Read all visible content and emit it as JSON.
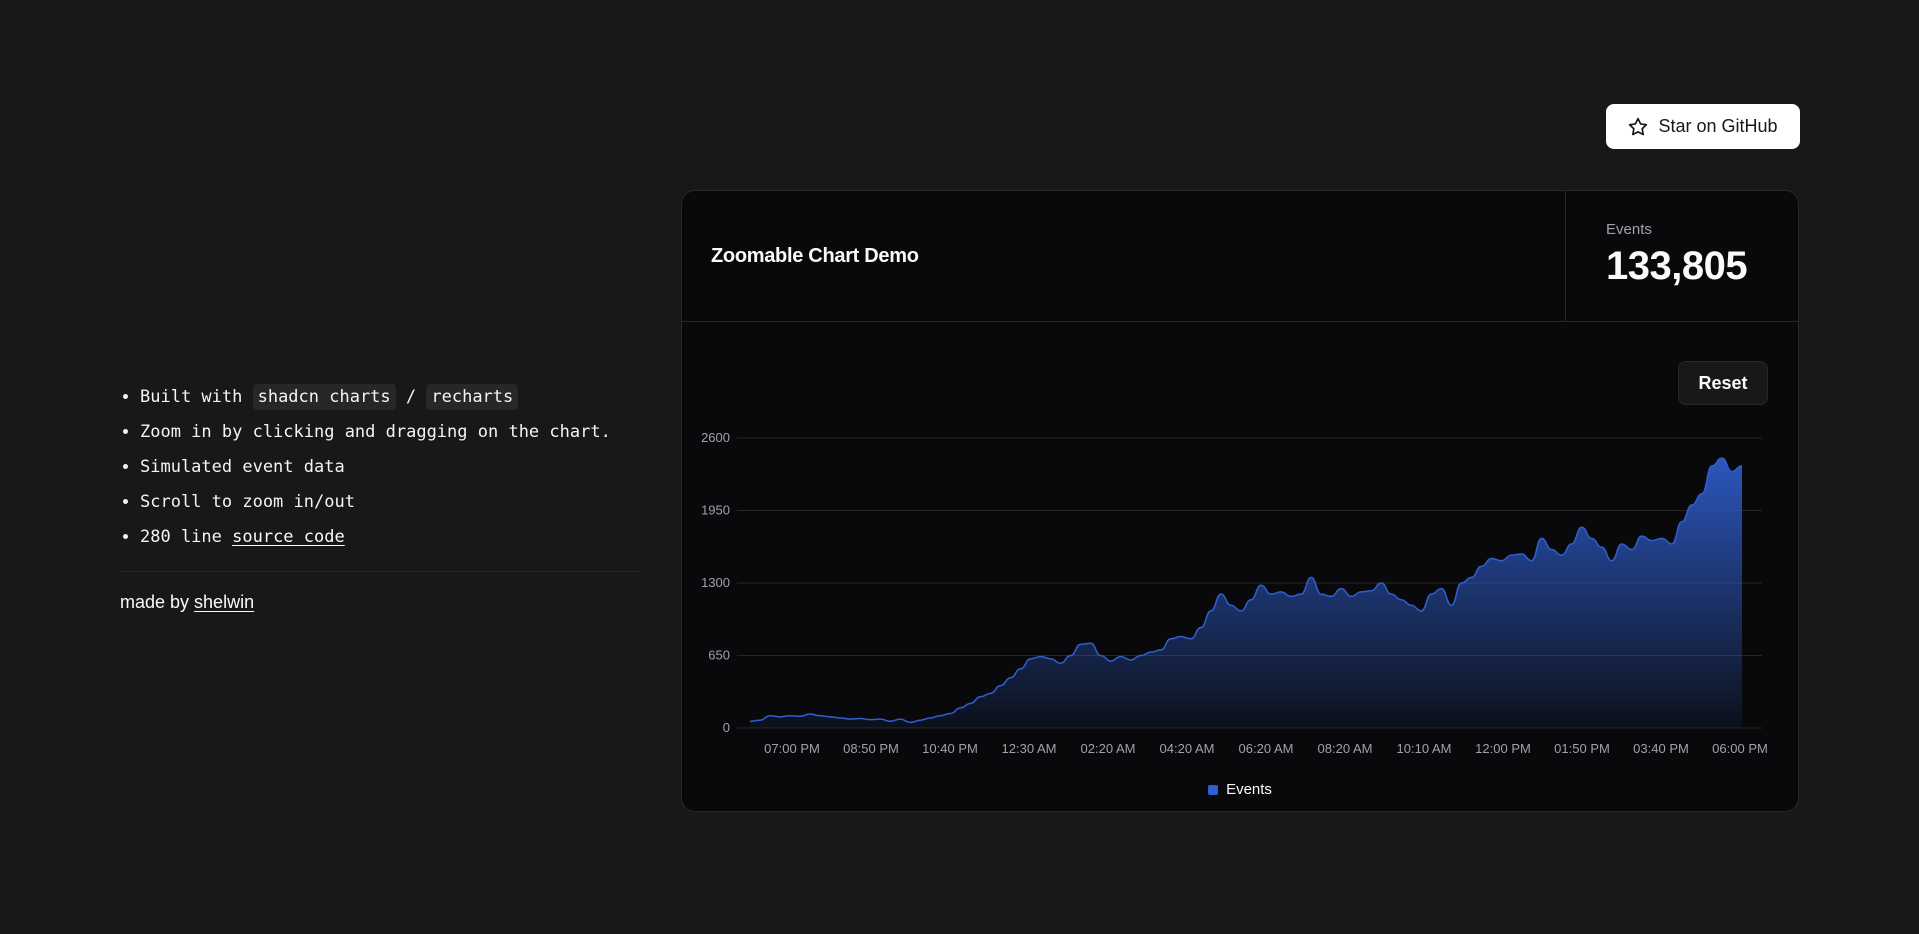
{
  "features": [
    {
      "pre": "Built with ",
      "code1": "shadcn charts",
      "mid": " / ",
      "code2": "recharts"
    },
    {
      "text": "Zoom in by clicking and dragging on the chart."
    },
    {
      "text": "Simulated event data"
    },
    {
      "text": "Scroll to zoom in/out"
    },
    {
      "pre": "280 line ",
      "link": "source code"
    }
  ],
  "footer": {
    "made_by": "made by ",
    "author": "shelwin"
  },
  "github_button": {
    "label": "Star on GitHub",
    "icon": "star-icon"
  },
  "card": {
    "title": "Zoomable Chart Demo",
    "stat_label": "Events",
    "stat_value": "133,805",
    "reset_label": "Reset"
  },
  "colors": {
    "accent": "#2f5fd0",
    "background": "#18181b",
    "card": "#09090b"
  },
  "chart_data": {
    "type": "area",
    "ylim": [
      0,
      2600
    ],
    "yticks": [
      "0",
      "650",
      "1300",
      "1950",
      "2600"
    ],
    "xticks": [
      "07:00 PM",
      "08:50 PM",
      "10:40 PM",
      "12:30 AM",
      "02:20 AM",
      "04:20 AM",
      "06:20 AM",
      "08:20 AM",
      "10:10 AM",
      "12:00 PM",
      "01:50 PM",
      "03:40 PM",
      "06:00 PM"
    ],
    "series": [
      {
        "name": "Events",
        "color": "#2f5fd0",
        "values": [
          60,
          70,
          110,
          100,
          110,
          105,
          125,
          110,
          100,
          90,
          80,
          85,
          75,
          80,
          60,
          80,
          50,
          70,
          90,
          110,
          130,
          180,
          220,
          280,
          310,
          380,
          450,
          530,
          620,
          640,
          620,
          580,
          650,
          750,
          760,
          650,
          600,
          640,
          610,
          650,
          680,
          700,
          800,
          820,
          800,
          900,
          1050,
          1200,
          1100,
          1050,
          1150,
          1280,
          1200,
          1220,
          1180,
          1200,
          1350,
          1200,
          1180,
          1250,
          1180,
          1220,
          1230,
          1300,
          1200,
          1150,
          1100,
          1050,
          1200,
          1250,
          1100,
          1300,
          1350,
          1450,
          1520,
          1500,
          1550,
          1560,
          1500,
          1700,
          1600,
          1550,
          1650,
          1800,
          1700,
          1620,
          1500,
          1650,
          1600,
          1720,
          1680,
          1700,
          1650,
          1850,
          2000,
          2100,
          2350,
          2420,
          2300,
          2350
        ]
      }
    ]
  }
}
